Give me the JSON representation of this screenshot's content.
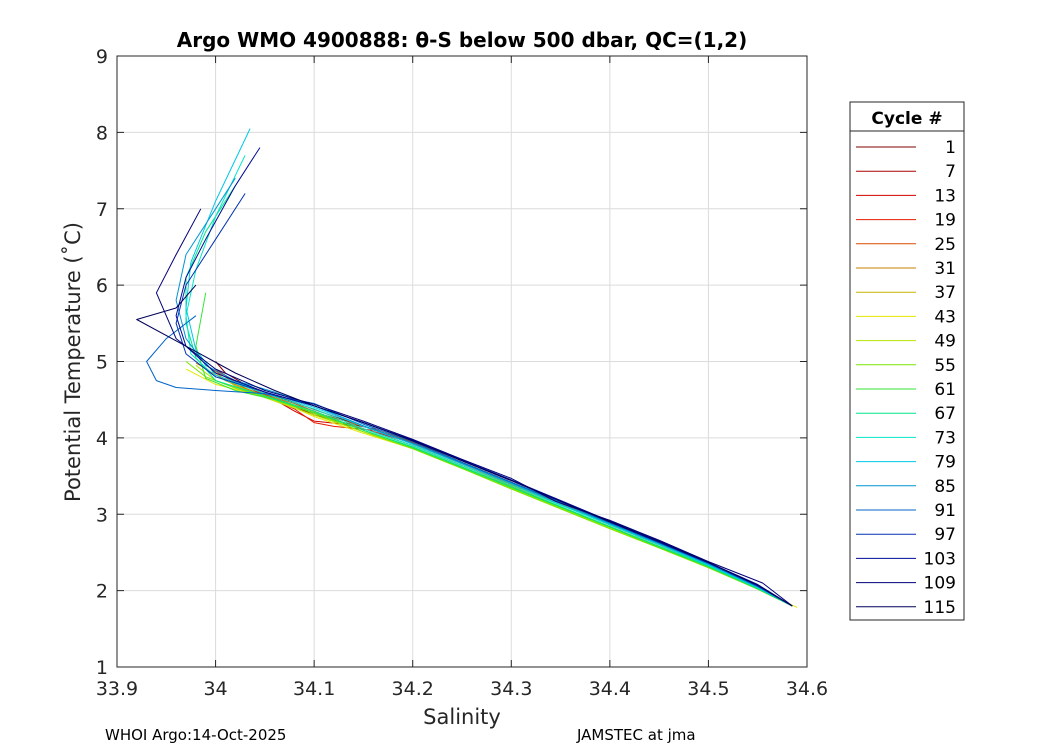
{
  "chart_data": {
    "type": "line",
    "title": "Argo WMO 4900888: θ-S below 500 dbar,  QC=(1,2)",
    "xlabel": "Salinity",
    "ylabel": "Potential Temperature (˚C)",
    "xlim": [
      33.9,
      34.6
    ],
    "ylim": [
      1,
      9
    ],
    "xticks": [
      33.9,
      34.0,
      34.1,
      34.2,
      34.3,
      34.4,
      34.5,
      34.6
    ],
    "xtick_labels": [
      "33.9",
      "34",
      "34.1",
      "34.2",
      "34.3",
      "34.4",
      "34.5",
      "34.6"
    ],
    "yticks": [
      1,
      2,
      3,
      4,
      5,
      6,
      7,
      8,
      9
    ],
    "ytick_labels": [
      "1",
      "2",
      "3",
      "4",
      "5",
      "6",
      "7",
      "8",
      "9"
    ],
    "grid": true,
    "legend": {
      "title": "Cycle #",
      "placement": "outside-right",
      "entries": [
        {
          "label": "1",
          "color": "#800000"
        },
        {
          "label": "7",
          "color": "#a80000"
        },
        {
          "label": "13",
          "color": "#d40000"
        },
        {
          "label": "19",
          "color": "#e81a00"
        },
        {
          "label": "25",
          "color": "#d94c00"
        },
        {
          "label": "31",
          "color": "#c88000"
        },
        {
          "label": "37",
          "color": "#c8b400"
        },
        {
          "label": "43",
          "color": "#e6e600"
        },
        {
          "label": "49",
          "color": "#b4e600"
        },
        {
          "label": "55",
          "color": "#7ae600"
        },
        {
          "label": "61",
          "color": "#33e633"
        },
        {
          "label": "67",
          "color": "#00e68a"
        },
        {
          "label": "73",
          "color": "#00e6c8"
        },
        {
          "label": "79",
          "color": "#00c8e6"
        },
        {
          "label": "85",
          "color": "#0096d2"
        },
        {
          "label": "91",
          "color": "#0064c8"
        },
        {
          "label": "97",
          "color": "#0032b4"
        },
        {
          "label": "103",
          "color": "#000a96"
        },
        {
          "label": "109",
          "color": "#000078"
        },
        {
          "label": "115",
          "color": "#00005a"
        }
      ]
    },
    "series": [
      {
        "name": "1",
        "x": [
          34.585,
          34.55,
          34.5,
          34.45,
          34.4,
          34.35,
          34.3,
          34.25,
          34.2,
          34.15,
          34.12,
          34.09,
          34.06,
          34.03,
          34.01,
          34.0
        ],
        "y": [
          1.8,
          2.05,
          2.35,
          2.62,
          2.88,
          3.15,
          3.42,
          3.68,
          3.95,
          4.15,
          4.28,
          4.42,
          4.55,
          4.7,
          4.85,
          5.0
        ]
      },
      {
        "name": "7",
        "x": [
          34.585,
          34.55,
          34.5,
          34.45,
          34.4,
          34.35,
          34.3,
          34.25,
          34.2,
          34.16,
          34.13,
          34.1,
          34.07,
          34.04,
          34.01
        ],
        "y": [
          1.8,
          2.04,
          2.34,
          2.61,
          2.87,
          3.13,
          3.4,
          3.66,
          3.92,
          4.12,
          4.2,
          4.3,
          4.47,
          4.62,
          4.8
        ]
      },
      {
        "name": "13",
        "x": [
          34.585,
          34.55,
          34.5,
          34.45,
          34.4,
          34.35,
          34.3,
          34.25,
          34.2,
          34.15,
          34.13,
          34.1,
          34.08,
          34.06,
          34.03,
          34.0
        ],
        "y": [
          1.8,
          2.04,
          2.33,
          2.6,
          2.86,
          3.13,
          3.4,
          3.66,
          3.93,
          4.12,
          4.18,
          4.22,
          4.35,
          4.5,
          4.65,
          4.9
        ]
      },
      {
        "name": "19",
        "x": [
          34.585,
          34.55,
          34.5,
          34.45,
          34.4,
          34.35,
          34.3,
          34.25,
          34.2,
          34.16,
          34.12,
          34.1,
          34.08,
          34.05,
          34.02
        ],
        "y": [
          1.8,
          2.05,
          2.34,
          2.61,
          2.87,
          3.14,
          3.41,
          3.67,
          3.94,
          4.1,
          4.15,
          4.2,
          4.38,
          4.55,
          4.75
        ]
      },
      {
        "name": "25",
        "x": [
          34.585,
          34.55,
          34.5,
          34.45,
          34.4,
          34.35,
          34.3,
          34.25,
          34.2,
          34.15,
          34.11,
          34.08,
          34.05,
          34.02,
          33.99
        ],
        "y": [
          1.8,
          2.05,
          2.35,
          2.62,
          2.88,
          3.15,
          3.42,
          3.68,
          3.95,
          4.15,
          4.3,
          4.45,
          4.58,
          4.72,
          4.95
        ]
      },
      {
        "name": "31",
        "x": [
          34.585,
          34.55,
          34.5,
          34.45,
          34.4,
          34.35,
          34.3,
          34.25,
          34.2,
          34.15,
          34.1,
          34.07,
          34.04,
          34.01,
          33.98
        ],
        "y": [
          1.8,
          2.05,
          2.34,
          2.61,
          2.87,
          3.13,
          3.39,
          3.64,
          3.9,
          4.12,
          4.32,
          4.48,
          4.6,
          4.75,
          4.98
        ]
      },
      {
        "name": "37",
        "x": [
          34.585,
          34.55,
          34.5,
          34.45,
          34.4,
          34.35,
          34.3,
          34.25,
          34.2,
          34.16,
          34.12,
          34.08,
          34.05,
          34.02,
          34.0
        ],
        "y": [
          1.8,
          2.03,
          2.32,
          2.58,
          2.84,
          3.1,
          3.37,
          3.62,
          3.88,
          4.05,
          4.25,
          4.42,
          4.55,
          4.68,
          4.85
        ]
      },
      {
        "name": "43",
        "x": [
          34.59,
          34.55,
          34.5,
          34.45,
          34.4,
          34.35,
          34.3,
          34.25,
          34.2,
          34.15,
          34.1,
          34.07,
          34.04,
          34.0,
          33.97
        ],
        "y": [
          1.78,
          2.02,
          2.31,
          2.57,
          2.83,
          3.09,
          3.35,
          3.6,
          3.86,
          4.06,
          4.28,
          4.45,
          4.57,
          4.7,
          4.9
        ]
      },
      {
        "name": "49",
        "x": [
          34.585,
          34.55,
          34.5,
          34.45,
          34.4,
          34.35,
          34.3,
          34.25,
          34.2,
          34.15,
          34.1,
          34.06,
          34.03,
          34.0,
          33.98
        ],
        "y": [
          1.8,
          2.02,
          2.3,
          2.56,
          2.82,
          3.08,
          3.34,
          3.6,
          3.86,
          4.08,
          4.3,
          4.48,
          4.62,
          4.75,
          4.95
        ]
      },
      {
        "name": "55",
        "x": [
          34.585,
          34.55,
          34.5,
          34.45,
          34.4,
          34.35,
          34.3,
          34.25,
          34.2,
          34.15,
          34.1,
          34.06,
          34.02,
          33.99,
          33.97
        ],
        "y": [
          1.8,
          2.02,
          2.3,
          2.56,
          2.81,
          3.07,
          3.33,
          3.6,
          3.86,
          4.08,
          4.32,
          4.5,
          4.65,
          4.8,
          5.0
        ]
      },
      {
        "name": "61",
        "x": [
          34.585,
          34.55,
          34.5,
          34.45,
          34.4,
          34.35,
          34.3,
          34.25,
          34.2,
          34.15,
          34.1,
          34.06,
          34.02,
          33.99,
          33.98,
          33.99
        ],
        "y": [
          1.8,
          2.02,
          2.31,
          2.57,
          2.83,
          3.09,
          3.35,
          3.61,
          3.87,
          4.1,
          4.33,
          4.5,
          4.62,
          4.78,
          5.2,
          5.9
        ]
      },
      {
        "name": "67",
        "x": [
          34.585,
          34.55,
          34.5,
          34.45,
          34.4,
          34.35,
          34.3,
          34.25,
          34.2,
          34.15,
          34.1,
          34.05,
          34.0,
          33.98,
          33.97,
          33.97,
          33.99,
          34.02
        ],
        "y": [
          1.8,
          2.03,
          2.32,
          2.58,
          2.84,
          3.1,
          3.36,
          3.62,
          3.88,
          4.1,
          4.35,
          4.55,
          4.75,
          5.05,
          5.5,
          6.1,
          6.7,
          7.3
        ]
      },
      {
        "name": "73",
        "x": [
          34.585,
          34.55,
          34.5,
          34.45,
          34.4,
          34.35,
          34.3,
          34.25,
          34.2,
          34.15,
          34.1,
          34.05,
          34.0,
          33.975,
          33.97,
          33.98,
          34.0,
          34.03
        ],
        "y": [
          1.8,
          2.04,
          2.33,
          2.6,
          2.86,
          3.12,
          3.38,
          3.64,
          3.9,
          4.12,
          4.38,
          4.58,
          4.8,
          5.1,
          5.6,
          6.2,
          6.9,
          7.7
        ]
      },
      {
        "name": "79",
        "x": [
          34.585,
          34.55,
          34.5,
          34.45,
          34.4,
          34.35,
          34.3,
          34.25,
          34.2,
          34.15,
          34.1,
          34.05,
          34.0,
          33.98,
          33.97,
          33.975,
          34.0,
          34.035
        ],
        "y": [
          1.8,
          2.04,
          2.34,
          2.61,
          2.87,
          3.13,
          3.4,
          3.66,
          3.92,
          4.15,
          4.4,
          4.6,
          4.82,
          5.15,
          5.7,
          6.3,
          7.1,
          8.05
        ]
      },
      {
        "name": "85",
        "x": [
          34.585,
          34.55,
          34.5,
          34.45,
          34.4,
          34.35,
          34.3,
          34.25,
          34.2,
          34.15,
          34.1,
          34.06,
          34.02,
          33.99,
          33.97,
          33.96,
          33.97,
          34.0,
          34.02
        ],
        "y": [
          1.8,
          2.05,
          2.35,
          2.62,
          2.88,
          3.15,
          3.41,
          3.67,
          3.93,
          4.16,
          4.42,
          4.6,
          4.75,
          4.95,
          5.3,
          5.8,
          6.4,
          7.0,
          7.4
        ]
      },
      {
        "name": "91",
        "x": [
          34.585,
          34.55,
          34.5,
          34.45,
          34.4,
          34.35,
          34.3,
          34.25,
          34.2,
          34.15,
          34.1,
          34.05,
          34.0,
          33.96,
          33.94,
          33.93,
          33.95,
          33.98
        ],
        "y": [
          1.8,
          2.06,
          2.36,
          2.63,
          2.89,
          3.16,
          3.42,
          3.68,
          3.95,
          4.18,
          4.45,
          4.58,
          4.62,
          4.66,
          4.75,
          5.0,
          5.3,
          5.6
        ]
      },
      {
        "name": "97",
        "x": [
          34.585,
          34.55,
          34.5,
          34.45,
          34.4,
          34.35,
          34.3,
          34.25,
          34.2,
          34.15,
          34.1,
          34.05,
          34.0,
          33.97,
          33.96,
          33.97,
          34.0,
          34.03
        ],
        "y": [
          1.8,
          2.06,
          2.36,
          2.63,
          2.9,
          3.17,
          3.44,
          3.7,
          3.97,
          4.2,
          4.42,
          4.6,
          4.8,
          5.1,
          5.5,
          6.0,
          6.6,
          7.2
        ]
      },
      {
        "name": "103",
        "x": [
          34.585,
          34.55,
          34.5,
          34.45,
          34.4,
          34.35,
          34.3,
          34.25,
          34.2,
          34.15,
          34.1,
          34.05,
          34.0,
          33.97,
          33.96,
          33.97,
          33.99,
          34.02,
          34.045
        ],
        "y": [
          1.8,
          2.08,
          2.37,
          2.65,
          2.91,
          3.18,
          3.45,
          3.71,
          3.97,
          4.2,
          4.42,
          4.6,
          4.85,
          5.2,
          5.6,
          6.1,
          6.6,
          7.3,
          7.8
        ]
      },
      {
        "name": "109",
        "x": [
          34.585,
          34.555,
          34.5,
          34.45,
          34.4,
          34.345,
          34.3,
          34.25,
          34.2,
          34.15,
          34.1,
          34.05,
          34.0,
          33.96,
          33.94,
          33.96,
          33.985
        ],
        "y": [
          1.8,
          2.1,
          2.38,
          2.66,
          2.92,
          3.17,
          3.47,
          3.72,
          3.98,
          4.22,
          4.44,
          4.62,
          4.9,
          5.3,
          5.9,
          6.4,
          7.0
        ]
      },
      {
        "name": "115",
        "x": [
          34.585,
          34.55,
          34.5,
          34.45,
          34.4,
          34.35,
          34.3,
          34.25,
          34.2,
          34.15,
          34.1,
          34.06,
          34.02,
          33.97,
          33.92,
          33.96,
          33.98
        ],
        "y": [
          1.8,
          2.07,
          2.37,
          2.64,
          2.9,
          3.17,
          3.44,
          3.7,
          3.96,
          4.2,
          4.42,
          4.62,
          4.85,
          5.2,
          5.55,
          5.7,
          6.0
        ]
      }
    ]
  },
  "footer": {
    "left": "WHOI Argo:14-Oct-2025",
    "right": "JAMSTEC at jma"
  }
}
